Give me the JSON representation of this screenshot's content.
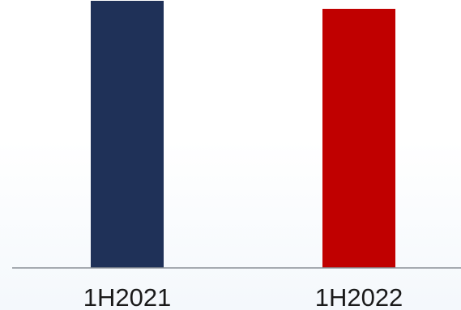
{
  "chart_data": {
    "type": "bar",
    "categories": [
      "1H2021",
      "1H2022"
    ],
    "values": [
      100,
      97
    ],
    "colors": [
      "#1f3158",
      "#c00000"
    ],
    "title": "",
    "xlabel": "",
    "ylabel": "",
    "ylim": [
      0,
      100
    ],
    "grid": false,
    "legend": "none"
  }
}
